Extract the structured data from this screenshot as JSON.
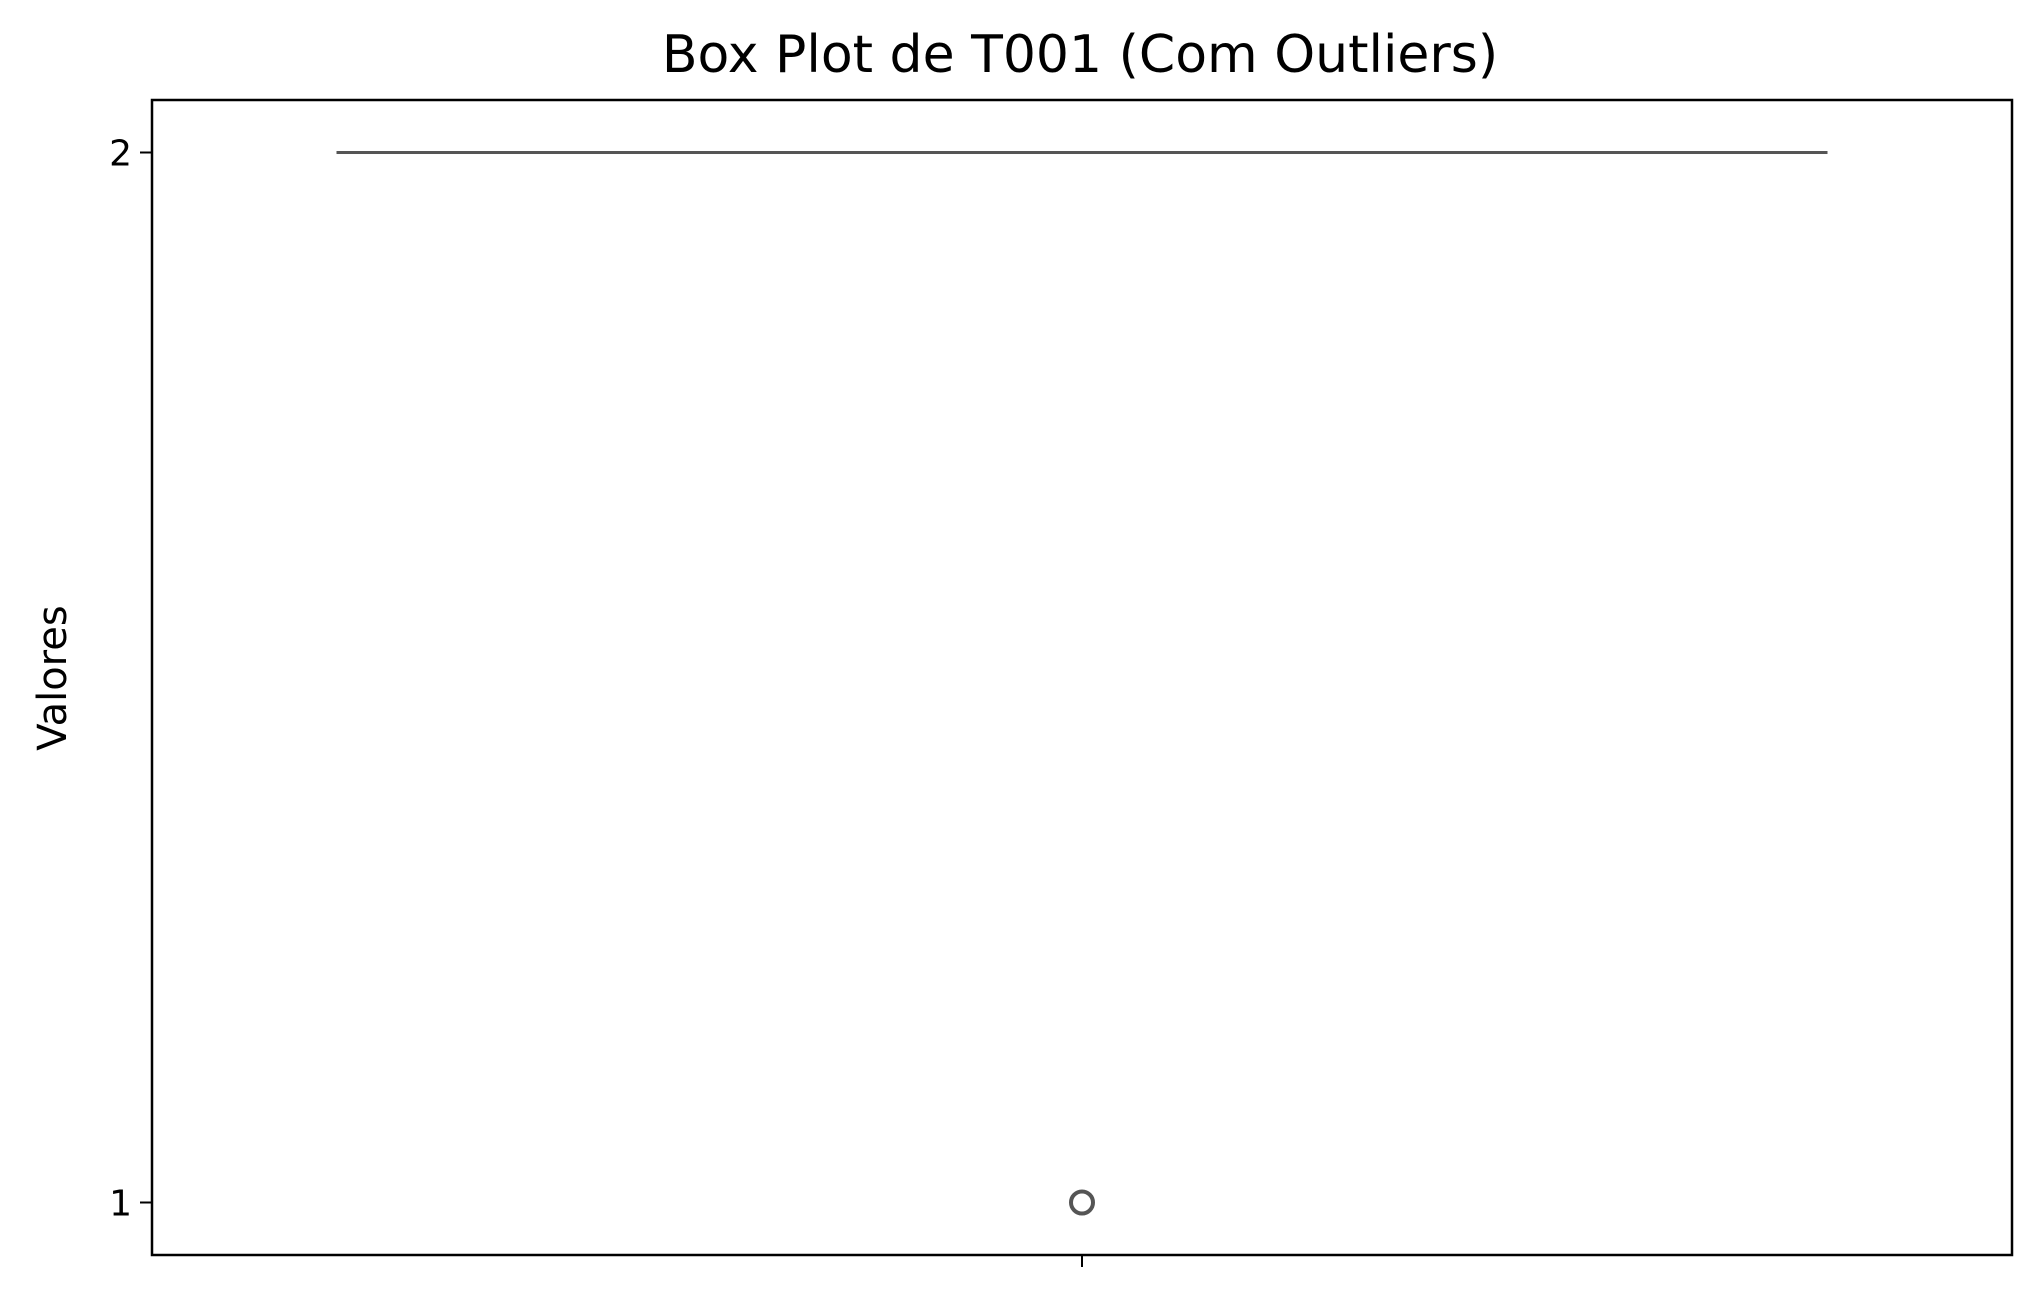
{
  "chart_data": {
    "type": "box",
    "title": "Box Plot de T001 (Com Outliers)",
    "xlabel": "",
    "ylabel": "Valores",
    "ylim": [
      0.95,
      2.05
    ],
    "yticks": [
      1,
      2
    ],
    "ytick_labels": [
      "1",
      "2"
    ],
    "xtick_labels": [
      ""
    ],
    "grid": false,
    "legend": "none",
    "series": [
      {
        "category": "",
        "min": 2,
        "q1": 2,
        "median": 2,
        "q3": 2,
        "max": 2,
        "outliers": [
          1
        ]
      }
    ],
    "colors": {
      "box_line": "#555555",
      "axes": "#000000",
      "background": "#ffffff"
    }
  }
}
